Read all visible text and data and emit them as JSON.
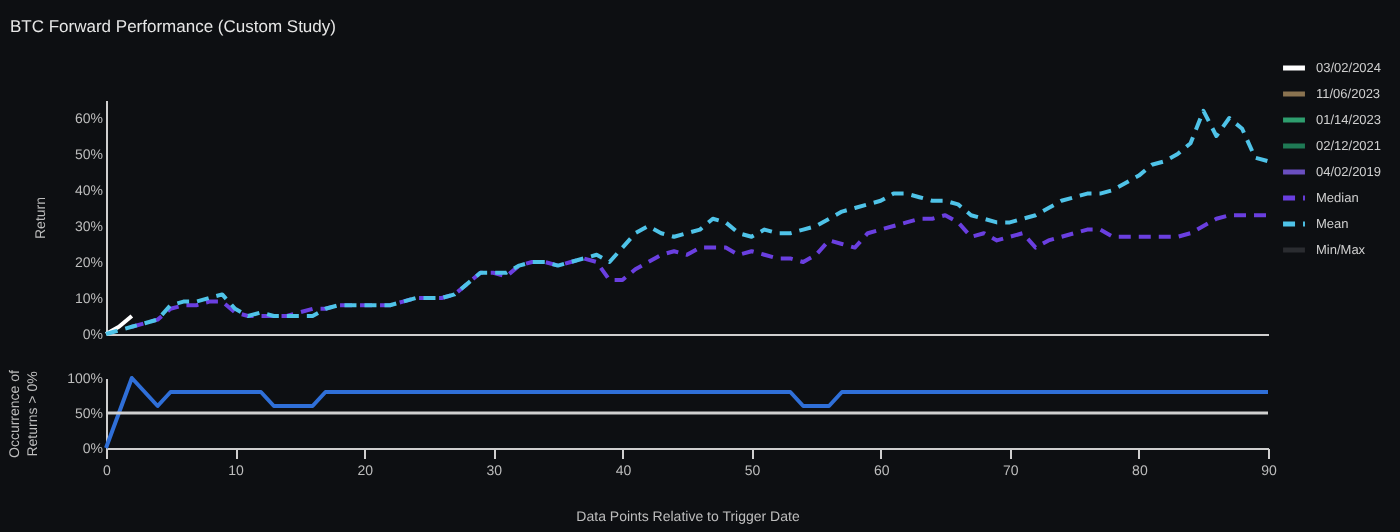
{
  "chart_data": [
    {
      "type": "line",
      "title": "BTC Forward Performance (Custom Study)",
      "ylabel": "Return",
      "legend": "right",
      "tick_labels": "y",
      "grid": false,
      "x": [
        0,
        1,
        2,
        3,
        4,
        5,
        6,
        7,
        8,
        9,
        10,
        11,
        12,
        13,
        14,
        15,
        16,
        17,
        18,
        19,
        20,
        21,
        22,
        23,
        24,
        25,
        26,
        27,
        28,
        29,
        30,
        31,
        32,
        33,
        34,
        35,
        36,
        37,
        38,
        39,
        40,
        41,
        42,
        43,
        44,
        45,
        46,
        47,
        48,
        49,
        50,
        51,
        52,
        53,
        54,
        55,
        56,
        57,
        58,
        59,
        60,
        61,
        62,
        63,
        64,
        65,
        66,
        67,
        68,
        69,
        70,
        71,
        72,
        73,
        74,
        75,
        76,
        77,
        78,
        79,
        80,
        81,
        82,
        83,
        84,
        85,
        86,
        87,
        88,
        89,
        90
      ],
      "xlim": [
        0,
        90
      ],
      "ylim": [
        0,
        65
      ],
      "yticks": [
        {
          "value": 0,
          "label": "0%"
        },
        {
          "value": 10,
          "label": "10%"
        },
        {
          "value": 20,
          "label": "20%"
        },
        {
          "value": 30,
          "label": "30%"
        },
        {
          "value": 40,
          "label": "40%"
        },
        {
          "value": 50,
          "label": "50%"
        },
        {
          "value": 60,
          "label": "60%"
        }
      ],
      "series": [
        {
          "name": "03/02/2024",
          "color": "#ffffff",
          "line_style": "solid",
          "values": [
            0,
            2,
            5,
            null,
            null,
            null,
            null,
            null,
            null,
            null,
            null,
            null,
            null,
            null,
            null,
            null,
            null,
            null,
            null,
            null,
            null,
            null,
            null,
            null,
            null,
            null,
            null,
            null,
            null,
            null,
            null,
            null,
            null,
            null,
            null,
            null,
            null,
            null,
            null,
            null,
            null,
            null,
            null,
            null,
            null,
            null,
            null,
            null,
            null,
            null,
            null,
            null,
            null,
            null,
            null,
            null,
            null,
            null,
            null,
            null,
            null,
            null,
            null,
            null,
            null,
            null,
            null,
            null,
            null,
            null,
            null,
            null,
            null,
            null,
            null,
            null,
            null,
            null,
            null,
            null,
            null,
            null,
            null,
            null,
            null,
            null,
            null,
            null,
            null,
            null,
            null
          ]
        },
        {
          "name": "11/06/2023",
          "color": "#8a7350",
          "line_style": "solid",
          "values": [
            null,
            null,
            null,
            null,
            null,
            null,
            null,
            null,
            null,
            null,
            null,
            null,
            null,
            null,
            null,
            null,
            null,
            null,
            null,
            null,
            null,
            null,
            null,
            null,
            null,
            null,
            null,
            null,
            null,
            null,
            null,
            null,
            null,
            null,
            null,
            null,
            null,
            null,
            null,
            null,
            null,
            null,
            null,
            null,
            null,
            null,
            null,
            null,
            null,
            null,
            null,
            null,
            null,
            null,
            null,
            null,
            null,
            null,
            null,
            null,
            null,
            null,
            null,
            null,
            null,
            null,
            null,
            null,
            null,
            null,
            null,
            null,
            null,
            null,
            null,
            null,
            null,
            null,
            null,
            null,
            null,
            null,
            null,
            null,
            null,
            null,
            null,
            null,
            null,
            null,
            null
          ]
        },
        {
          "name": "01/14/2023",
          "color": "#2e9e6e",
          "line_style": "solid",
          "values": [
            null,
            null,
            null,
            null,
            null,
            null,
            null,
            null,
            null,
            null,
            null,
            null,
            null,
            null,
            null,
            null,
            null,
            null,
            null,
            null,
            null,
            null,
            null,
            null,
            null,
            null,
            null,
            null,
            null,
            null,
            null,
            null,
            null,
            null,
            null,
            null,
            null,
            null,
            null,
            null,
            null,
            null,
            null,
            null,
            null,
            null,
            null,
            null,
            null,
            null,
            null,
            null,
            null,
            null,
            null,
            null,
            null,
            null,
            null,
            null,
            null,
            null,
            null,
            null,
            null,
            null,
            null,
            null,
            null,
            null,
            null,
            null,
            null,
            null,
            null,
            null,
            null,
            null,
            null,
            null,
            null,
            null,
            null,
            null,
            null,
            null,
            null,
            null,
            null,
            null,
            null
          ]
        },
        {
          "name": "02/12/2021",
          "color": "#1f7a55",
          "line_style": "solid",
          "values": [
            null,
            null,
            null,
            null,
            null,
            null,
            null,
            null,
            null,
            null,
            null,
            null,
            null,
            null,
            null,
            null,
            null,
            null,
            null,
            null,
            null,
            null,
            null,
            null,
            null,
            null,
            null,
            null,
            null,
            null,
            null,
            null,
            null,
            null,
            null,
            null,
            null,
            null,
            null,
            null,
            null,
            null,
            null,
            null,
            null,
            null,
            null,
            null,
            null,
            null,
            null,
            null,
            null,
            null,
            null,
            null,
            null,
            null,
            null,
            null,
            null,
            null,
            null,
            null,
            null,
            null,
            null,
            null,
            null,
            null,
            null,
            null,
            null,
            null,
            null,
            null,
            null,
            null,
            null,
            null,
            null,
            null,
            null,
            null,
            null,
            null,
            null,
            null,
            null,
            null,
            null
          ]
        },
        {
          "name": "04/02/2019",
          "color": "#6a4fc0",
          "line_style": "solid",
          "values": [
            null,
            null,
            null,
            null,
            null,
            null,
            null,
            null,
            null,
            null,
            null,
            null,
            null,
            null,
            null,
            null,
            null,
            null,
            null,
            null,
            null,
            null,
            null,
            null,
            null,
            null,
            null,
            null,
            null,
            null,
            null,
            null,
            null,
            null,
            null,
            null,
            null,
            null,
            null,
            null,
            null,
            null,
            null,
            null,
            null,
            null,
            null,
            null,
            null,
            null,
            null,
            null,
            null,
            null,
            null,
            null,
            null,
            null,
            null,
            null,
            null,
            null,
            null,
            null,
            null,
            null,
            null,
            null,
            null,
            null,
            null,
            null,
            null,
            null,
            null,
            null,
            null,
            null,
            null,
            null,
            null,
            null,
            null,
            null,
            null,
            null,
            null,
            null,
            null,
            null,
            null
          ]
        },
        {
          "name": "Median",
          "color": "#6a3fe0",
          "line_style": "dashed",
          "values": [
            null,
            null,
            2,
            3,
            4,
            7,
            8,
            8,
            9,
            9,
            6,
            5,
            5,
            5,
            5,
            6,
            7,
            7,
            8,
            8,
            8,
            8,
            8,
            9,
            10,
            10,
            10,
            11,
            14,
            17,
            17,
            16,
            19,
            20,
            20,
            19,
            20,
            21,
            20,
            15,
            15,
            18,
            20,
            22,
            23,
            22,
            24,
            24,
            24,
            22,
            23,
            22,
            21,
            21,
            20,
            22,
            26,
            25,
            24,
            28,
            29,
            30,
            31,
            32,
            32,
            33,
            31,
            27,
            28,
            26,
            27,
            28,
            24,
            26,
            27,
            28,
            29,
            29,
            27,
            27,
            27,
            27,
            27,
            27,
            28,
            30,
            32,
            33,
            33,
            33,
            33
          ]
        },
        {
          "name": "Mean",
          "color": "#4fc3e8",
          "line_style": "dashed",
          "values": [
            0,
            1,
            2,
            3,
            4,
            8,
            9,
            9,
            10,
            11,
            7,
            5,
            6,
            5,
            5,
            5,
            5,
            7,
            8,
            8,
            8,
            8,
            8,
            9,
            10,
            10,
            10,
            11,
            14,
            17,
            17,
            17,
            19,
            20,
            20,
            19,
            20,
            21,
            22,
            20,
            24,
            28,
            30,
            28,
            27,
            28,
            29,
            32,
            31,
            28,
            27,
            29,
            28,
            28,
            29,
            30,
            32,
            34,
            35,
            36,
            37,
            39,
            39,
            38,
            37,
            37,
            36,
            33,
            32,
            31,
            31,
            32,
            33,
            35,
            37,
            38,
            39,
            39,
            40,
            42,
            44,
            47,
            48,
            50,
            53,
            62,
            55,
            60,
            57,
            49,
            48
          ]
        },
        {
          "name": "Min/Max",
          "color": "#2a2c30",
          "line_style": "solid",
          "values": [
            null,
            null,
            null,
            null,
            null,
            null,
            null,
            null,
            null,
            null,
            null,
            null,
            null,
            null,
            null,
            null,
            null,
            null,
            null,
            null,
            null,
            null,
            null,
            null,
            null,
            null,
            null,
            null,
            null,
            null,
            null,
            null,
            null,
            null,
            null,
            null,
            null,
            null,
            null,
            null,
            null,
            null,
            null,
            null,
            null,
            null,
            null,
            null,
            null,
            null,
            null,
            null,
            null,
            null,
            null,
            null,
            null,
            null,
            null,
            null,
            null,
            null,
            null,
            null,
            null,
            null,
            null,
            null,
            null,
            null,
            null,
            null,
            null,
            null,
            null,
            null,
            null,
            null,
            null,
            null,
            null,
            null,
            null,
            null,
            null,
            null,
            null,
            null,
            null,
            null,
            null
          ]
        }
      ]
    },
    {
      "type": "line",
      "ylabel": "Occurrence of\nReturns > 0%",
      "xlabel": "Data Points Relative to Trigger Date",
      "legend": false,
      "grid": false,
      "x": [
        0,
        1,
        2,
        3,
        4,
        5,
        6,
        7,
        8,
        9,
        10,
        11,
        12,
        13,
        14,
        15,
        16,
        17,
        18,
        19,
        20,
        21,
        22,
        23,
        24,
        25,
        26,
        27,
        28,
        29,
        30,
        31,
        32,
        33,
        34,
        35,
        36,
        37,
        38,
        39,
        40,
        41,
        42,
        43,
        44,
        45,
        46,
        47,
        48,
        49,
        50,
        51,
        52,
        53,
        54,
        55,
        56,
        57,
        58,
        59,
        60,
        61,
        62,
        63,
        64,
        65,
        66,
        67,
        68,
        69,
        70,
        71,
        72,
        73,
        74,
        75,
        76,
        77,
        78,
        79,
        80,
        81,
        82,
        83,
        84,
        85,
        86,
        87,
        88,
        89,
        90
      ],
      "xlim": [
        0,
        90
      ],
      "xticks": [
        0,
        10,
        20,
        30,
        40,
        50,
        60,
        70,
        80,
        90
      ],
      "ylim": [
        0,
        100
      ],
      "yticks": [
        {
          "value": 0,
          "label": "0%"
        },
        {
          "value": 50,
          "label": "50%"
        },
        {
          "value": 100,
          "label": "100%"
        }
      ],
      "ref_lines": [
        {
          "axis": "y",
          "value": 50,
          "color": "#d0d0d0"
        }
      ],
      "series": [
        {
          "color": "#2f6fd8",
          "line_style": "solid",
          "values": [
            0,
            50,
            100,
            80,
            60,
            80,
            80,
            80,
            80,
            80,
            80,
            80,
            80,
            60,
            60,
            60,
            60,
            80,
            80,
            80,
            80,
            80,
            80,
            80,
            80,
            80,
            80,
            80,
            80,
            80,
            80,
            80,
            80,
            80,
            80,
            80,
            80,
            80,
            80,
            80,
            80,
            80,
            80,
            80,
            80,
            80,
            80,
            80,
            80,
            80,
            80,
            80,
            80,
            80,
            60,
            60,
            60,
            80,
            80,
            80,
            80,
            80,
            80,
            80,
            80,
            80,
            80,
            80,
            80,
            80,
            80,
            80,
            80,
            80,
            80,
            80,
            80,
            80,
            80,
            80,
            80,
            80,
            80,
            80,
            80,
            80,
            80,
            80,
            80,
            80,
            80
          ]
        }
      ]
    }
  ]
}
